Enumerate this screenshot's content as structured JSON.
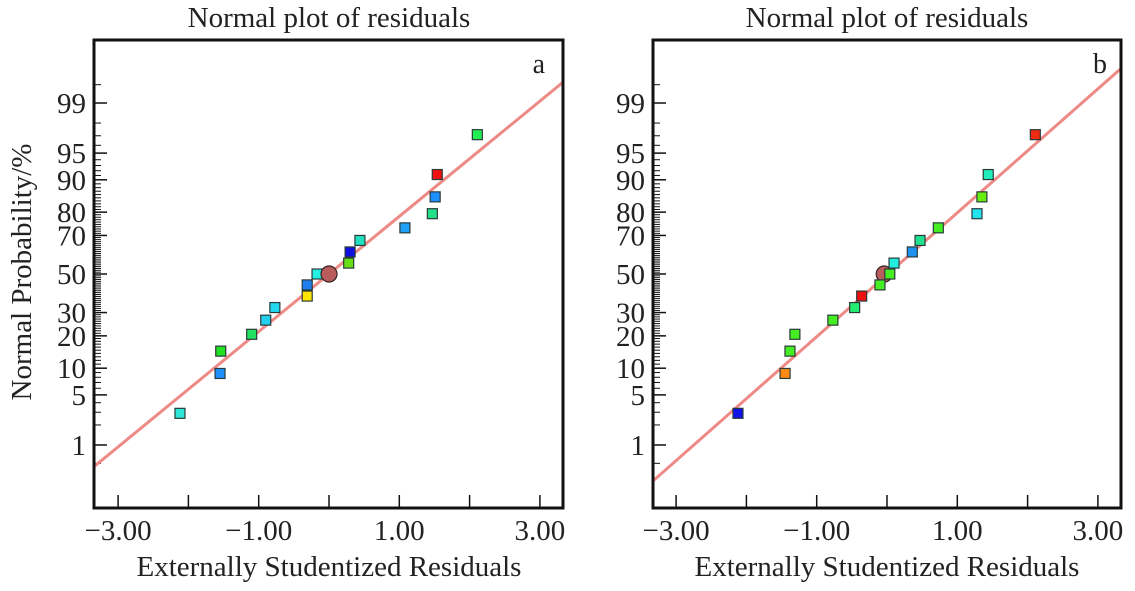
{
  "chart_data": [
    {
      "type": "scatter",
      "panel_label": "a",
      "title": "Normal plot of residuals",
      "xlabel": "Externally Studentized Residuals",
      "ylabel": "Normal Probability/%",
      "xlim": [
        -3.34,
        3.33
      ],
      "x_ticks": [
        -3,
        -2,
        -1,
        0,
        1,
        2,
        3
      ],
      "x_tick_labels": [
        "−3.00",
        "",
        "−1.00",
        "",
        "1.00",
        "",
        "3.00"
      ],
      "y_scale": "normal-probability",
      "ylim_percent": [
        0.15,
        99.9
      ],
      "y_ticks": [
        1,
        5,
        10,
        20,
        30,
        50,
        70,
        80,
        90,
        95,
        99
      ],
      "y_tick_labels": [
        "1",
        "5",
        "10",
        "20",
        "30",
        "50",
        "70",
        "80",
        "90",
        "95",
        "99"
      ],
      "grid": false,
      "reference_line": {
        "color": "#ee8a86",
        "z_slope": 0.784,
        "z_intercept": 0.0
      },
      "center_marker": {
        "x": 0.0,
        "y": 50,
        "color": "#b85c5c"
      },
      "points": [
        {
          "x": -2.12,
          "y": 2.9,
          "color": "#2ee6d6"
        },
        {
          "x": -1.55,
          "y": 8.8,
          "color": "#1e90ff"
        },
        {
          "x": -1.54,
          "y": 14.7,
          "color": "#22e022"
        },
        {
          "x": -1.1,
          "y": 20.6,
          "color": "#22e060"
        },
        {
          "x": -0.9,
          "y": 26.5,
          "color": "#22d0ee"
        },
        {
          "x": -0.77,
          "y": 32.4,
          "color": "#22d8f0"
        },
        {
          "x": -0.31,
          "y": 38.2,
          "color": "#ffe600"
        },
        {
          "x": -0.31,
          "y": 44.1,
          "color": "#1e80f0"
        },
        {
          "x": -0.17,
          "y": 50.0,
          "color": "#22f0e0"
        },
        {
          "x": 0.28,
          "y": 55.9,
          "color": "#66e014"
        },
        {
          "x": 0.3,
          "y": 61.8,
          "color": "#1010e0"
        },
        {
          "x": 0.44,
          "y": 67.6,
          "color": "#22e0c0"
        },
        {
          "x": 1.08,
          "y": 73.5,
          "color": "#1ea0f8"
        },
        {
          "x": 1.47,
          "y": 79.4,
          "color": "#22e08a"
        },
        {
          "x": 1.51,
          "y": 85.3,
          "color": "#1e90ff"
        },
        {
          "x": 1.54,
          "y": 91.2,
          "color": "#f01010"
        },
        {
          "x": 2.11,
          "y": 97.1,
          "color": "#22f050"
        }
      ]
    },
    {
      "type": "scatter",
      "panel_label": "b",
      "title": "Normal plot of residuals",
      "xlabel": "Externally Studentized Residuals",
      "ylabel": "",
      "xlim": [
        -3.34,
        3.33
      ],
      "x_ticks": [
        -3,
        -2,
        -1,
        0,
        1,
        2,
        3
      ],
      "x_tick_labels": [
        "−3.00",
        "",
        "−1.00",
        "",
        "1.00",
        "",
        "3.00"
      ],
      "y_scale": "normal-probability",
      "ylim_percent": [
        0.15,
        99.9
      ],
      "y_ticks": [
        1,
        5,
        10,
        20,
        30,
        50,
        70,
        80,
        90,
        95,
        99
      ],
      "y_tick_labels": [
        "1",
        "5",
        "10",
        "20",
        "30",
        "50",
        "70",
        "80",
        "90",
        "95",
        "99"
      ],
      "grid": false,
      "reference_line": {
        "color": "#ee8a86",
        "z_slope": 0.843,
        "z_intercept": -0.01
      },
      "center_marker": {
        "x": -0.04,
        "y": 50,
        "color": "#b85c5c"
      },
      "points": [
        {
          "x": -2.12,
          "y": 2.9,
          "color": "#1010e8"
        },
        {
          "x": -1.45,
          "y": 8.8,
          "color": "#ff8c10"
        },
        {
          "x": -1.38,
          "y": 14.7,
          "color": "#44ee22"
        },
        {
          "x": -1.31,
          "y": 20.6,
          "color": "#44ee22"
        },
        {
          "x": -0.77,
          "y": 26.5,
          "color": "#44ee22"
        },
        {
          "x": -0.46,
          "y": 32.4,
          "color": "#22ee70"
        },
        {
          "x": -0.36,
          "y": 38.2,
          "color": "#ee1010"
        },
        {
          "x": -0.1,
          "y": 44.1,
          "color": "#44ee22"
        },
        {
          "x": 0.04,
          "y": 50.0,
          "color": "#44ee22"
        },
        {
          "x": 0.1,
          "y": 55.9,
          "color": "#22eedd"
        },
        {
          "x": 0.36,
          "y": 61.8,
          "color": "#1e90ee"
        },
        {
          "x": 0.47,
          "y": 67.6,
          "color": "#22e090"
        },
        {
          "x": 0.73,
          "y": 73.5,
          "color": "#44ee22"
        },
        {
          "x": 1.28,
          "y": 79.4,
          "color": "#22e4ee"
        },
        {
          "x": 1.35,
          "y": 85.3,
          "color": "#66ee10"
        },
        {
          "x": 1.44,
          "y": 91.2,
          "color": "#22eebb"
        },
        {
          "x": 2.11,
          "y": 97.1,
          "color": "#ee2a10"
        }
      ]
    }
  ]
}
